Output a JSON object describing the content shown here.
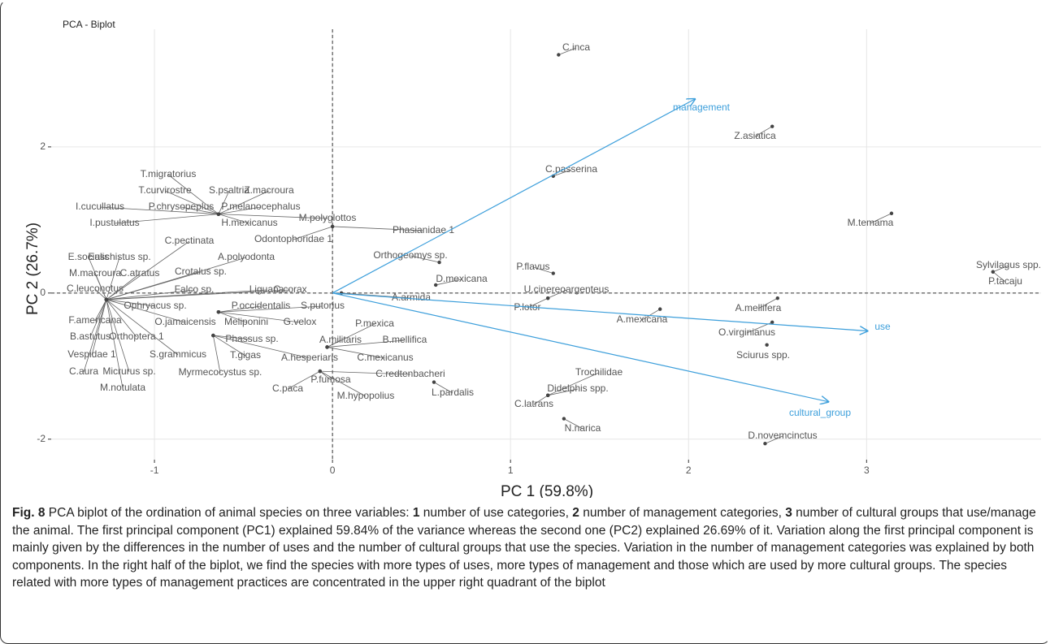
{
  "chart_data": {
    "type": "biplot",
    "title": "PCA - Biplot",
    "x_label": "PC 1 (59.8%)",
    "y_label": "PC 2 (26.7%)",
    "xlim": [
      -1.58,
      3.98
    ],
    "ylim": [
      -2.28,
      3.61
    ],
    "xticks": [
      -1,
      0,
      1,
      2,
      3
    ],
    "yticks": [
      -2,
      0,
      2
    ],
    "grid": true,
    "point_color": "#444444",
    "arrow_color": "#3d9fdb",
    "points": [
      {
        "name": "E.socialis",
        "x": -1.27,
        "y": -0.09
      },
      {
        "name": "M.macroura",
        "x": -1.27,
        "y": -0.09
      },
      {
        "name": "C.leuconotus",
        "x": -1.27,
        "y": -0.09
      },
      {
        "name": "F.americana",
        "x": -1.27,
        "y": -0.09
      },
      {
        "name": "B.astutus",
        "x": -1.27,
        "y": -0.09
      },
      {
        "name": "Vespidae 1",
        "x": -1.27,
        "y": -0.09
      },
      {
        "name": "C.aura",
        "x": -1.27,
        "y": -0.09
      },
      {
        "name": "M.notulata",
        "x": -1.27,
        "y": -0.09
      },
      {
        "name": "Micrurus sp.",
        "x": -1.27,
        "y": -0.09
      },
      {
        "name": "Orthoptera 1",
        "x": -1.27,
        "y": -0.09
      },
      {
        "name": "S.grammicus",
        "x": -1.27,
        "y": -0.09
      },
      {
        "name": "O.jamaicensis",
        "x": -1.27,
        "y": -0.09
      },
      {
        "name": "Ophryacus sp.",
        "x": -1.27,
        "y": -0.09
      },
      {
        "name": "Falco sp.",
        "x": -1.27,
        "y": -0.09
      },
      {
        "name": "I.iguana",
        "x": -1.27,
        "y": -0.09
      },
      {
        "name": "C.corax",
        "x": -1.27,
        "y": -0.09
      },
      {
        "name": "Crotalus sp.",
        "x": -1.27,
        "y": -0.09
      },
      {
        "name": "A.polyodonta",
        "x": -1.27,
        "y": -0.09
      },
      {
        "name": "C.atratus",
        "x": -1.27,
        "y": -0.09
      },
      {
        "name": "Euschistus sp.",
        "x": -1.27,
        "y": -0.09
      },
      {
        "name": "C.pectinata",
        "x": -1.27,
        "y": -0.09
      },
      {
        "name": "T.migratorius",
        "x": -0.64,
        "y": 1.08
      },
      {
        "name": "T.curvirostre",
        "x": -0.64,
        "y": 1.08
      },
      {
        "name": "S.psaltria",
        "x": -0.64,
        "y": 1.08
      },
      {
        "name": "Z.macroura",
        "x": -0.64,
        "y": 1.08
      },
      {
        "name": "I.cucullatus",
        "x": -0.64,
        "y": 1.08
      },
      {
        "name": "P.chrysopeplus",
        "x": -0.64,
        "y": 1.08
      },
      {
        "name": "P.melanocephalus",
        "x": -0.64,
        "y": 1.08
      },
      {
        "name": "I.pustulatus",
        "x": -0.64,
        "y": 1.08
      },
      {
        "name": "H.mexicanus",
        "x": -0.64,
        "y": 1.08
      },
      {
        "name": "M.polyglottos",
        "x": -0.64,
        "y": 1.08
      },
      {
        "name": "Odontophoridae 1",
        "x": 0.0,
        "y": 0.91
      },
      {
        "name": "Phasianidae 1",
        "x": 0.0,
        "y": 0.91
      },
      {
        "name": "P.occidentalis",
        "x": -0.64,
        "y": -0.26
      },
      {
        "name": "S.putorius",
        "x": -0.64,
        "y": -0.26
      },
      {
        "name": "Meliponini",
        "x": -0.64,
        "y": -0.26
      },
      {
        "name": "G.velox",
        "x": -0.64,
        "y": -0.26
      },
      {
        "name": "Phassus sp.",
        "x": -0.67,
        "y": -0.58
      },
      {
        "name": "T.gigas",
        "x": -0.67,
        "y": -0.58
      },
      {
        "name": "A.hesperiaris",
        "x": -0.67,
        "y": -0.58
      },
      {
        "name": "Myrmecocystus sp.",
        "x": -0.67,
        "y": -0.58
      },
      {
        "name": "P.mexica",
        "x": -0.03,
        "y": -0.74
      },
      {
        "name": "A.militaris",
        "x": -0.03,
        "y": -0.74
      },
      {
        "name": "B.mellifica",
        "x": -0.03,
        "y": -0.74
      },
      {
        "name": "C.mexicanus",
        "x": -0.03,
        "y": -0.74
      },
      {
        "name": "C.redtenbacheri",
        "x": -0.07,
        "y": -1.07
      },
      {
        "name": "P.fumosa",
        "x": -0.07,
        "y": -1.07
      },
      {
        "name": "M.hypopolius",
        "x": -0.07,
        "y": -1.07
      },
      {
        "name": "C.paca",
        "x": -0.07,
        "y": -1.07
      },
      {
        "name": "C.inca",
        "x": 1.27,
        "y": 3.26
      },
      {
        "name": "Z.asiatica",
        "x": 2.47,
        "y": 2.28
      },
      {
        "name": "C.passerina",
        "x": 1.24,
        "y": 1.6
      },
      {
        "name": "M.temama",
        "x": 3.14,
        "y": 1.09
      },
      {
        "name": "Sylvilagus spp.",
        "x": 3.71,
        "y": 0.29
      },
      {
        "name": "P.tacaju",
        "x": 3.71,
        "y": 0.29
      },
      {
        "name": "Orthogeomys sp.",
        "x": 0.6,
        "y": 0.42
      },
      {
        "name": "D.mexicana",
        "x": 0.58,
        "y": 0.11
      },
      {
        "name": "P.flavus",
        "x": 1.24,
        "y": 0.27
      },
      {
        "name": "U.cinereoargenteus",
        "x": 1.21,
        "y": -0.07
      },
      {
        "name": "P.lotor",
        "x": 1.21,
        "y": -0.07
      },
      {
        "name": "A.armida",
        "x": 0.05,
        "y": 0.0
      },
      {
        "name": "A.mexicana",
        "x": 1.84,
        "y": -0.22
      },
      {
        "name": "A.mellifera",
        "x": 2.5,
        "y": -0.07
      },
      {
        "name": "O.virginianus",
        "x": 2.47,
        "y": -0.4
      },
      {
        "name": "Sciurus spp.",
        "x": 2.44,
        "y": -0.71
      },
      {
        "name": "L.pardalis",
        "x": 0.57,
        "y": -1.22
      },
      {
        "name": "Trochilidae",
        "x": 1.21,
        "y": -1.4
      },
      {
        "name": "Didelphis spp.",
        "x": 1.21,
        "y": -1.4
      },
      {
        "name": "C.latrans",
        "x": 1.21,
        "y": -1.4
      },
      {
        "name": "N.narica",
        "x": 1.3,
        "y": -1.72
      },
      {
        "name": "D.novemcinctus",
        "x": 2.43,
        "y": -2.06
      }
    ],
    "loadings": [
      {
        "name": "management",
        "x": 2.04,
        "y": 2.66
      },
      {
        "name": "use",
        "x": 3.01,
        "y": -0.52
      },
      {
        "name": "cultural_group",
        "x": 2.79,
        "y": -1.49
      }
    ]
  },
  "caption": [
    {
      "text": "Fig. 8",
      "bold": true
    },
    {
      "text": " PCA biplot of the ordination of animal species on three variables: ",
      "bold": false
    },
    {
      "text": "1",
      "bold": true
    },
    {
      "text": " number of use categories, ",
      "bold": false
    },
    {
      "text": "2",
      "bold": true
    },
    {
      "text": " number of management categories, ",
      "bold": false
    },
    {
      "text": "3",
      "bold": true
    },
    {
      "text": " number of cultural groups that use/manage the animal. The first principal component (PC1) explained 59.84% of the variance whereas the second one (PC2) explained 26.69% of it. Variation along the first principal component is mainly given by the differences in the number of uses and the number of cultural groups that use the species. Variation in the number of management categories was explained by both components. In the right half of the biplot, we find the species with more types of uses, more types of management and those which are used by more cultural groups. The species related with more types of management practices are concentrated in the upper right quadrant of the biplot",
      "bold": false
    }
  ]
}
